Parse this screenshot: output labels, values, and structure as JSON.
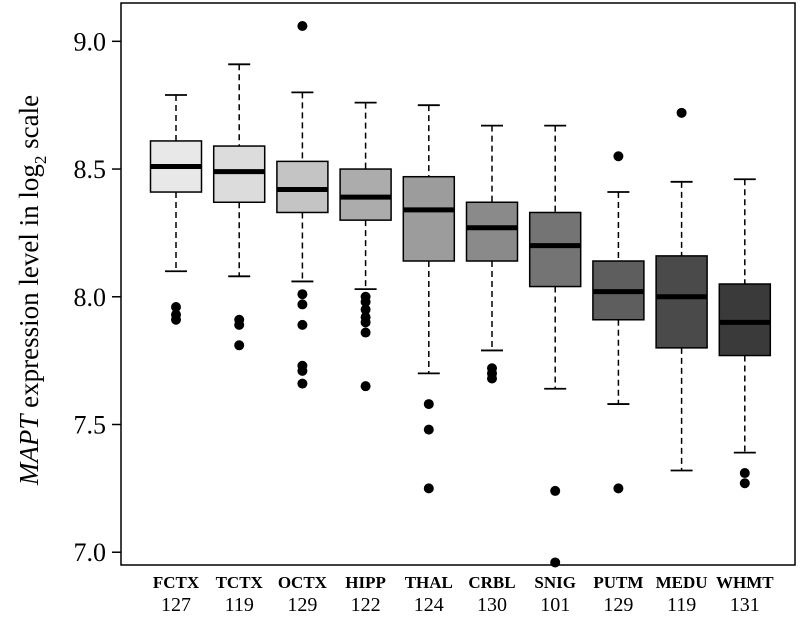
{
  "chart_data": {
    "type": "boxplot",
    "ylabel": {
      "prefix": "MAPT",
      "middle": " expression level in log",
      "subscript": "2",
      "suffix": " scale"
    },
    "ylim": [
      6.95,
      9.15
    ],
    "yticks": [
      7.0,
      7.5,
      8.0,
      8.5,
      9.0
    ],
    "ytick_labels": [
      "7.0",
      "7.5",
      "8.0",
      "8.5",
      "9.0"
    ],
    "grid": false,
    "legend": "none",
    "categories": [
      "FCTX",
      "TCTX",
      "OCTX",
      "HIPP",
      "THAL",
      "CRBL",
      "SNIG",
      "PUTM",
      "MEDU",
      "WHMT"
    ],
    "sample_sizes": [
      "127",
      "119",
      "129",
      "122",
      "124",
      "130",
      "101",
      "129",
      "119",
      "131"
    ],
    "boxes": [
      {
        "name": "FCTX",
        "whisker_low": 8.1,
        "q1": 8.41,
        "median": 8.51,
        "q3": 8.61,
        "whisker_high": 8.79,
        "outliers": [
          7.96,
          7.93,
          7.91
        ],
        "color": "#e8e8e8"
      },
      {
        "name": "TCTX",
        "whisker_low": 8.08,
        "q1": 8.37,
        "median": 8.49,
        "q3": 8.59,
        "whisker_high": 8.91,
        "outliers": [
          7.91,
          7.89,
          7.81
        ],
        "color": "#dcdcdc"
      },
      {
        "name": "OCTX",
        "whisker_low": 8.06,
        "q1": 8.33,
        "median": 8.42,
        "q3": 8.53,
        "whisker_high": 8.8,
        "outliers": [
          9.06,
          8.01,
          7.97,
          7.89,
          7.73,
          7.71,
          7.66
        ],
        "color": "#c4c4c4"
      },
      {
        "name": "HIPP",
        "whisker_low": 8.03,
        "q1": 8.3,
        "median": 8.39,
        "q3": 8.5,
        "whisker_high": 8.76,
        "outliers": [
          8.0,
          7.98,
          7.95,
          7.92,
          7.9,
          7.86,
          7.65
        ],
        "color": "#acacac"
      },
      {
        "name": "THAL",
        "whisker_low": 7.7,
        "q1": 8.14,
        "median": 8.34,
        "q3": 8.47,
        "whisker_high": 8.75,
        "outliers": [
          7.58,
          7.48,
          7.25
        ],
        "color": "#9c9c9c"
      },
      {
        "name": "CRBL",
        "whisker_low": 7.79,
        "q1": 8.14,
        "median": 8.27,
        "q3": 8.37,
        "whisker_high": 8.67,
        "outliers": [
          7.72,
          7.7,
          7.68
        ],
        "color": "#8a8a8a"
      },
      {
        "name": "SNIG",
        "whisker_low": 7.64,
        "q1": 8.04,
        "median": 8.2,
        "q3": 8.33,
        "whisker_high": 8.67,
        "outliers": [
          7.24,
          6.96
        ],
        "color": "#747474"
      },
      {
        "name": "PUTM",
        "whisker_low": 7.58,
        "q1": 7.91,
        "median": 8.02,
        "q3": 8.14,
        "whisker_high": 8.41,
        "outliers": [
          8.55,
          7.25
        ],
        "color": "#5e5e5e"
      },
      {
        "name": "MEDU",
        "whisker_low": 7.32,
        "q1": 7.8,
        "median": 8.0,
        "q3": 8.16,
        "whisker_high": 8.45,
        "outliers": [
          8.72
        ],
        "color": "#4a4a4a"
      },
      {
        "name": "WHMT",
        "whisker_low": 7.39,
        "q1": 7.77,
        "median": 7.9,
        "q3": 8.05,
        "whisker_high": 8.46,
        "outliers": [
          7.31,
          7.27
        ],
        "color": "#3a3a3a"
      }
    ]
  }
}
